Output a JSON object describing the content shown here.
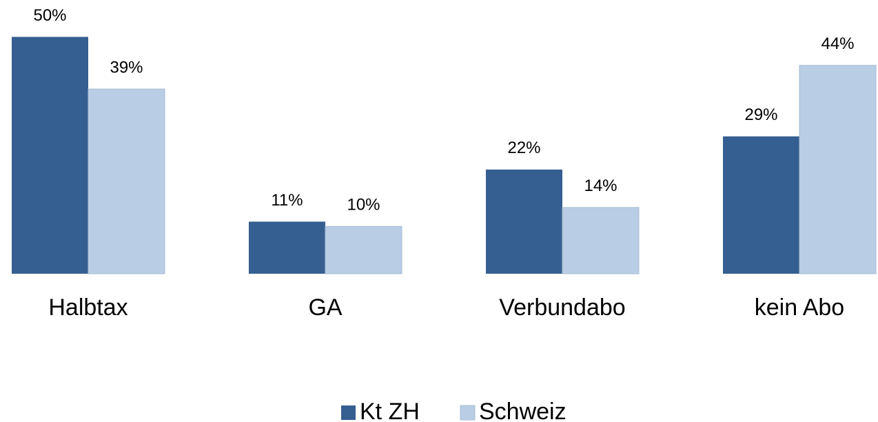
{
  "chart_data": {
    "type": "bar",
    "categories": [
      "Halbtax",
      "GA",
      "Verbundabo",
      "kein Abo"
    ],
    "series": [
      {
        "name": "Kt ZH",
        "color": "#365f91",
        "values": [
          50,
          11,
          22,
          29
        ],
        "value_labels": [
          "50%",
          "11%",
          "22%",
          "29%"
        ]
      },
      {
        "name": "Schweiz",
        "color": "#b9cde5",
        "values": [
          39,
          10,
          14,
          44
        ],
        "value_labels": [
          "39%",
          "10%",
          "14%",
          "44%"
        ]
      }
    ],
    "legend": "bottom"
  }
}
